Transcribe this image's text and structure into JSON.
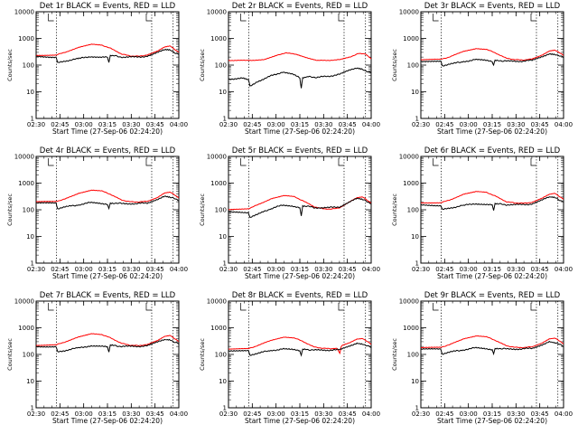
{
  "chart_data": [
    {
      "type": "line",
      "title": "Det 1r BLACK = Events, RED = LLD",
      "xlabel": "Start Time (27-Sep-06 02:24:20)",
      "ylabel": "Counts/sec",
      "x_ticks": [
        "02:30",
        "02:45",
        "03:00",
        "03:15",
        "03:30",
        "03:45",
        "04:00"
      ],
      "y_ticks": [
        "1",
        "10",
        "100",
        "1000",
        "10000"
      ],
      "y_scale": "log",
      "xlim": [
        0,
        100
      ],
      "ylim": [
        1,
        10000
      ],
      "markers": [
        14.3,
        81,
        96
      ],
      "series": [
        {
          "color": "#ff0000",
          "x": [
            0,
            14,
            20,
            30,
            39,
            46,
            52,
            60,
            66,
            72,
            78,
            85,
            90,
            94,
            100
          ],
          "y": [
            230,
            240,
            300,
            460,
            600,
            560,
            430,
            260,
            220,
            215,
            240,
            330,
            480,
            520,
            300
          ]
        },
        {
          "color": "#000000",
          "x": [
            0,
            14,
            15,
            20,
            25,
            28,
            30,
            38,
            45,
            50,
            51,
            52,
            54,
            60,
            70,
            78,
            85,
            90,
            94,
            100
          ],
          "y": [
            210,
            200,
            120,
            140,
            160,
            170,
            175,
            210,
            200,
            195,
            130,
            220,
            225,
            200,
            200,
            215,
            290,
            380,
            360,
            250
          ]
        }
      ]
    },
    {
      "type": "line",
      "title": "Det 2r BLACK = Events, RED = LLD",
      "xlabel": "Start Time (27-Sep-06 02:24:20)",
      "ylabel": "Counts/sec",
      "x_ticks": [
        "02:30",
        "02:45",
        "03:00",
        "03:15",
        "03:30",
        "03:45",
        "04:00"
      ],
      "y_ticks": [
        "1",
        "10",
        "100",
        "1000",
        "10000"
      ],
      "y_scale": "log",
      "xlim": [
        0,
        100
      ],
      "ylim": [
        1,
        10000
      ],
      "markers": [
        14.3,
        81,
        96
      ],
      "series": [
        {
          "color": "#ff0000",
          "x": [
            0,
            15,
            25,
            34,
            40,
            48,
            55,
            62,
            70,
            78,
            85,
            91,
            96,
            100
          ],
          "y": [
            150,
            150,
            160,
            230,
            290,
            250,
            190,
            150,
            150,
            160,
            200,
            270,
            260,
            170
          ]
        },
        {
          "color": "#000000",
          "x": [
            0,
            10,
            14,
            15,
            20,
            25,
            30,
            38,
            45,
            50,
            51,
            52,
            56,
            62,
            70,
            78,
            85,
            90,
            94,
            100
          ],
          "y": [
            30,
            32,
            28,
            16,
            24,
            30,
            40,
            55,
            45,
            33,
            14,
            32,
            36,
            35,
            38,
            45,
            65,
            80,
            70,
            50
          ]
        }
      ]
    },
    {
      "type": "line",
      "title": "Det 3r BLACK = Events, RED = LLD",
      "xlabel": "Start Time (27-Sep-06 02:24:20)",
      "ylabel": "Counts/sec",
      "x_ticks": [
        "02:30",
        "02:45",
        "03:00",
        "03:15",
        "03:30",
        "03:45",
        "04:00"
      ],
      "y_ticks": [
        "1",
        "10",
        "100",
        "1000",
        "10000"
      ],
      "y_scale": "log",
      "xlim": [
        0,
        100
      ],
      "ylim": [
        1,
        10000
      ],
      "markers": [
        14.3,
        81,
        96
      ],
      "series": [
        {
          "color": "#ff0000",
          "x": [
            0,
            14,
            20,
            30,
            39,
            46,
            52,
            60,
            66,
            72,
            78,
            85,
            90,
            94,
            100
          ],
          "y": [
            160,
            165,
            200,
            330,
            420,
            390,
            290,
            180,
            160,
            155,
            170,
            240,
            340,
            370,
            230
          ]
        },
        {
          "color": "#000000",
          "x": [
            0,
            14,
            15,
            20,
            25,
            28,
            30,
            38,
            45,
            50,
            51,
            52,
            54,
            60,
            70,
            78,
            85,
            90,
            94,
            100
          ],
          "y": [
            140,
            135,
            95,
            110,
            120,
            130,
            135,
            160,
            150,
            140,
            100,
            150,
            150,
            140,
            140,
            150,
            210,
            270,
            260,
            190
          ]
        }
      ]
    },
    {
      "type": "line",
      "title": "Det 4r BLACK = Events, RED = LLD",
      "xlabel": "Start Time (27-Sep-06 02:24:20)",
      "ylabel": "Counts/sec",
      "x_ticks": [
        "02:30",
        "02:45",
        "03:00",
        "03:15",
        "03:30",
        "03:45",
        "04:00"
      ],
      "y_ticks": [
        "1",
        "10",
        "100",
        "1000",
        "10000"
      ],
      "y_scale": "log",
      "xlim": [
        0,
        100
      ],
      "ylim": [
        1,
        10000
      ],
      "markers": [
        14.3,
        81,
        96
      ],
      "series": [
        {
          "color": "#ff0000",
          "x": [
            0,
            14,
            20,
            30,
            39,
            46,
            52,
            60,
            66,
            72,
            78,
            85,
            90,
            94,
            100
          ],
          "y": [
            200,
            205,
            250,
            420,
            550,
            510,
            380,
            230,
            200,
            195,
            210,
            290,
            420,
            460,
            280
          ]
        },
        {
          "color": "#000000",
          "x": [
            0,
            14,
            15,
            20,
            25,
            28,
            30,
            38,
            45,
            50,
            51,
            52,
            54,
            60,
            70,
            78,
            85,
            90,
            94,
            100
          ],
          "y": [
            180,
            175,
            110,
            125,
            140,
            150,
            155,
            185,
            175,
            165,
            110,
            180,
            180,
            170,
            170,
            180,
            250,
            320,
            300,
            220
          ]
        }
      ]
    },
    {
      "type": "line",
      "title": "Det 5r BLACK = Events, RED = LLD",
      "xlabel": "Start Time (27-Sep-06 02:24:20)",
      "ylabel": "Counts/sec",
      "x_ticks": [
        "02:30",
        "02:45",
        "03:00",
        "03:15",
        "03:30",
        "03:45",
        "04:00"
      ],
      "y_ticks": [
        "1",
        "10",
        "100",
        "1000",
        "10000"
      ],
      "y_scale": "log",
      "xlim": [
        0,
        100
      ],
      "ylim": [
        1,
        10000
      ],
      "markers": [
        14.3,
        81,
        96
      ],
      "series": [
        {
          "color": "#ff0000",
          "x": [
            0,
            14,
            20,
            30,
            39,
            46,
            52,
            60,
            66,
            72,
            78,
            85,
            90,
            94,
            100
          ],
          "y": [
            100,
            110,
            150,
            260,
            340,
            310,
            220,
            130,
            110,
            105,
            120,
            200,
            280,
            300,
            180
          ]
        },
        {
          "color": "#000000",
          "x": [
            0,
            14,
            15,
            20,
            25,
            28,
            30,
            38,
            45,
            50,
            51,
            52,
            54,
            60,
            70,
            78,
            85,
            90,
            94,
            100
          ],
          "y": [
            80,
            78,
            50,
            65,
            90,
            100,
            110,
            150,
            140,
            120,
            60,
            140,
            140,
            120,
            120,
            130,
            200,
            260,
            240,
            170
          ]
        }
      ]
    },
    {
      "type": "line",
      "title": "Det 6r BLACK = Events, RED = LLD",
      "xlabel": "Start Time (27-Sep-06 02:24:20)",
      "ylabel": "Counts/sec",
      "x_ticks": [
        "02:30",
        "02:45",
        "03:00",
        "03:15",
        "03:30",
        "03:45",
        "04:00"
      ],
      "y_ticks": [
        "1",
        "10",
        "100",
        "1000",
        "10000"
      ],
      "y_scale": "log",
      "xlim": [
        0,
        100
      ],
      "ylim": [
        1,
        10000
      ],
      "markers": [
        14.3,
        81,
        96
      ],
      "series": [
        {
          "color": "#ff0000",
          "x": [
            0,
            14,
            20,
            30,
            39,
            46,
            52,
            60,
            66,
            72,
            78,
            85,
            90,
            94,
            100
          ],
          "y": [
            180,
            185,
            230,
            380,
            480,
            450,
            330,
            200,
            180,
            175,
            190,
            270,
            380,
            410,
            250
          ]
        },
        {
          "color": "#000000",
          "x": [
            0,
            14,
            15,
            20,
            25,
            28,
            30,
            38,
            45,
            50,
            51,
            52,
            54,
            60,
            70,
            78,
            85,
            90,
            94,
            100
          ],
          "y": [
            150,
            145,
            100,
            115,
            130,
            140,
            145,
            170,
            160,
            150,
            100,
            165,
            165,
            155,
            155,
            165,
            230,
            300,
            280,
            200
          ]
        }
      ]
    },
    {
      "type": "line",
      "title": "Det 7r BLACK = Events, RED = LLD",
      "xlabel": "Start Time (27-Sep-06 02:24:20)",
      "ylabel": "Counts/sec",
      "x_ticks": [
        "02:30",
        "02:45",
        "03:00",
        "03:15",
        "03:30",
        "03:45",
        "04:00"
      ],
      "y_ticks": [
        "1",
        "10",
        "100",
        "1000",
        "10000"
      ],
      "y_scale": "log",
      "xlim": [
        0,
        100
      ],
      "ylim": [
        1,
        10000
      ],
      "markers": [
        14.3,
        81,
        96
      ],
      "series": [
        {
          "color": "#ff0000",
          "x": [
            0,
            14,
            20,
            30,
            39,
            46,
            52,
            60,
            66,
            72,
            78,
            85,
            90,
            94,
            100
          ],
          "y": [
            220,
            230,
            290,
            450,
            600,
            560,
            420,
            260,
            220,
            215,
            235,
            330,
            480,
            520,
            300
          ]
        },
        {
          "color": "#000000",
          "x": [
            0,
            14,
            15,
            20,
            25,
            28,
            30,
            38,
            45,
            50,
            51,
            52,
            54,
            60,
            70,
            78,
            85,
            90,
            94,
            100
          ],
          "y": [
            200,
            195,
            125,
            140,
            160,
            170,
            175,
            210,
            200,
            190,
            130,
            215,
            215,
            200,
            200,
            210,
            290,
            370,
            350,
            250
          ]
        }
      ]
    },
    {
      "type": "line",
      "title": "Det 8r BLACK = Events, RED = LLD",
      "xlabel": "Start Time (27-Sep-06 02:24:20)",
      "ylabel": "Counts/sec",
      "x_ticks": [
        "02:30",
        "02:45",
        "03:00",
        "03:15",
        "03:30",
        "03:45",
        "04:00"
      ],
      "y_ticks": [
        "1",
        "10",
        "100",
        "1000",
        "10000"
      ],
      "y_scale": "log",
      "xlim": [
        0,
        100
      ],
      "ylim": [
        1,
        10000
      ],
      "markers": [
        14.3,
        81,
        96
      ],
      "series": [
        {
          "color": "#ff0000",
          "x": [
            0,
            14,
            20,
            30,
            39,
            46,
            52,
            60,
            66,
            72,
            76,
            78,
            79,
            80,
            85,
            90,
            94,
            100
          ],
          "y": [
            160,
            165,
            210,
            340,
            450,
            420,
            310,
            190,
            170,
            165,
            170,
            110,
            200,
            220,
            280,
            380,
            400,
            240
          ]
        },
        {
          "color": "#000000",
          "x": [
            0,
            14,
            15,
            20,
            25,
            28,
            30,
            38,
            45,
            50,
            51,
            52,
            54,
            60,
            70,
            78,
            85,
            90,
            94,
            100
          ],
          "y": [
            140,
            135,
            95,
            110,
            125,
            135,
            140,
            160,
            150,
            140,
            95,
            155,
            155,
            145,
            145,
            150,
            210,
            270,
            250,
            180
          ]
        }
      ]
    },
    {
      "type": "line",
      "title": "Det 9r BLACK = Events, RED = LLD",
      "xlabel": "Start Time (27-Sep-06 02:24:20)",
      "ylabel": "Counts/sec",
      "x_ticks": [
        "02:30",
        "02:45",
        "03:00",
        "03:15",
        "03:30",
        "03:45",
        "04:00"
      ],
      "y_ticks": [
        "1",
        "10",
        "100",
        "1000",
        "10000"
      ],
      "y_scale": "log",
      "xlim": [
        0,
        100
      ],
      "ylim": [
        1,
        10000
      ],
      "markers": [
        14.3,
        81,
        96
      ],
      "series": [
        {
          "color": "#ff0000",
          "x": [
            0,
            14,
            20,
            30,
            39,
            46,
            52,
            60,
            66,
            72,
            78,
            85,
            90,
            94,
            100
          ],
          "y": [
            180,
            185,
            230,
            390,
            500,
            460,
            340,
            210,
            185,
            180,
            195,
            270,
            380,
            410,
            250
          ]
        },
        {
          "color": "#000000",
          "x": [
            0,
            14,
            15,
            20,
            25,
            28,
            30,
            38,
            45,
            50,
            51,
            52,
            54,
            60,
            70,
            78,
            85,
            90,
            94,
            100
          ],
          "y": [
            160,
            155,
            105,
            120,
            135,
            145,
            150,
            175,
            165,
            155,
            105,
            170,
            170,
            160,
            160,
            170,
            235,
            300,
            280,
            200
          ]
        }
      ]
    }
  ]
}
